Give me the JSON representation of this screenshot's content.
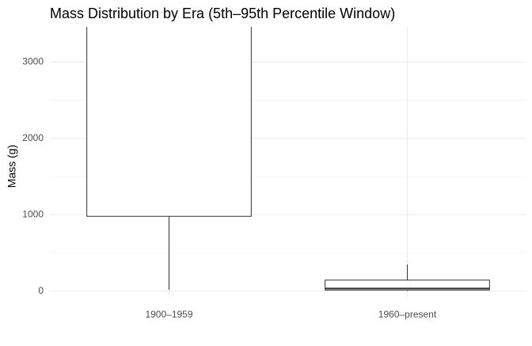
{
  "chart_data": {
    "type": "box",
    "title": "Mass Distribution by Era (5th–95th Percentile Window)",
    "y_label": "Mass (g)",
    "categories": [
      "1900–1959",
      "1960–present"
    ],
    "boxes": [
      {
        "whislo": 20,
        "q1": 980,
        "med": null,
        "q3": null,
        "whishi": null
      },
      {
        "whislo": 5,
        "q1": 15,
        "med": 35,
        "q3": 145,
        "whishi": 350
      }
    ],
    "color": "#ffffff",
    "edge_color": "#333333",
    "ylim": [
      -75,
      3460
    ],
    "yticks": [
      0,
      1000,
      2000,
      3000
    ],
    "minor_yticks": [
      500,
      1500,
      2500
    ],
    "grid": true
  }
}
